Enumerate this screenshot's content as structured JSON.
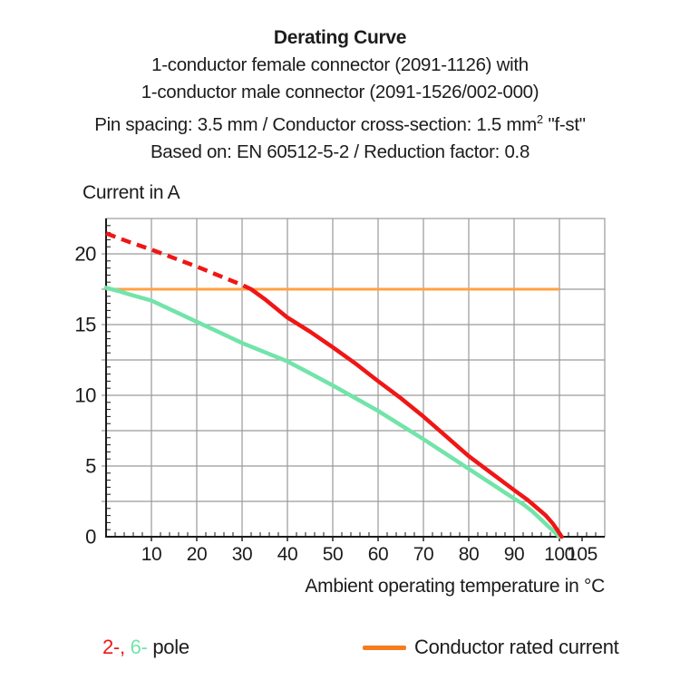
{
  "header": {
    "title": "Derating Curve",
    "subtitle_lines": [
      "1-conductor female connector (2091-1126) with",
      "1-conductor male connector (2091-1526/002-000)"
    ],
    "spec_line": {
      "pre": "Pin spacing: 3.5 mm / Conductor cross-section: 1.5 mm",
      "sup": "2",
      "post": " \"f-st\""
    },
    "basis_line": "Based on: EN 60512-5-2 / Reduction factor: 0.8"
  },
  "chart_data": {
    "type": "line",
    "title": "Derating Curve",
    "xlabel": "Ambient operating temperature in °C",
    "ylabel": "Current in A",
    "xlim": [
      0,
      110
    ],
    "ylim": [
      0,
      22.5
    ],
    "x_major_ticks": [
      10,
      20,
      30,
      40,
      50,
      60,
      70,
      80,
      90,
      100,
      105
    ],
    "y_major_ticks": [
      0,
      5,
      10,
      15,
      20
    ],
    "x_grid_step": 10,
    "y_grid_step": 2.5,
    "x_minor_step": 2,
    "y_minor_step": 0.5,
    "grid": true,
    "rated_current_A": 17.5,
    "series": [
      {
        "name": "2-pole",
        "color": "#f01616",
        "dashed_above_rated": true,
        "points_dashed": [
          [
            0,
            21.45
          ],
          [
            5,
            20.85
          ],
          [
            10,
            20.3
          ],
          [
            15,
            19.7
          ],
          [
            20,
            19.1
          ],
          [
            25,
            18.45
          ],
          [
            30,
            17.8
          ],
          [
            32,
            17.5
          ]
        ],
        "points_solid": [
          [
            32,
            17.5
          ],
          [
            35,
            16.8
          ],
          [
            40,
            15.5
          ],
          [
            45,
            14.5
          ],
          [
            50,
            13.4
          ],
          [
            55,
            12.25
          ],
          [
            60,
            11.0
          ],
          [
            65,
            9.8
          ],
          [
            70,
            8.5
          ],
          [
            75,
            7.1
          ],
          [
            80,
            5.7
          ],
          [
            85,
            4.5
          ],
          [
            90,
            3.3
          ],
          [
            93,
            2.6
          ],
          [
            95,
            2.05
          ],
          [
            97,
            1.5
          ],
          [
            98.5,
            0.95
          ],
          [
            99.5,
            0.5
          ],
          [
            100.5,
            0
          ]
        ]
      },
      {
        "name": "6-pole",
        "color": "#72e4a9",
        "points": [
          [
            0,
            17.6
          ],
          [
            3,
            17.35
          ],
          [
            5,
            17.15
          ],
          [
            10,
            16.7
          ],
          [
            15,
            15.95
          ],
          [
            20,
            15.2
          ],
          [
            25,
            14.45
          ],
          [
            30,
            13.7
          ],
          [
            35,
            13.05
          ],
          [
            40,
            12.4
          ],
          [
            45,
            11.55
          ],
          [
            50,
            10.7
          ],
          [
            55,
            9.8
          ],
          [
            60,
            8.9
          ],
          [
            65,
            7.9
          ],
          [
            70,
            6.9
          ],
          [
            75,
            5.85
          ],
          [
            80,
            4.8
          ],
          [
            85,
            3.75
          ],
          [
            90,
            2.7
          ],
          [
            92,
            2.3
          ],
          [
            94,
            1.8
          ],
          [
            95.5,
            1.35
          ],
          [
            97,
            0.9
          ],
          [
            98.5,
            0.45
          ],
          [
            100,
            0
          ]
        ]
      },
      {
        "name": "Conductor rated current",
        "color": "#ffa243",
        "points": [
          [
            0,
            17.5
          ],
          [
            100,
            17.5
          ]
        ]
      }
    ],
    "colors": {
      "grid": "#9a9a9a",
      "axis": "#1a1a1a",
      "text": "#1c1c1c"
    }
  },
  "legend": {
    "poles": {
      "red": "2-,",
      "green": "6-",
      "suffix": "pole"
    },
    "rated": {
      "label": "Conductor rated current",
      "swatch_color": "#f57c1f"
    }
  }
}
